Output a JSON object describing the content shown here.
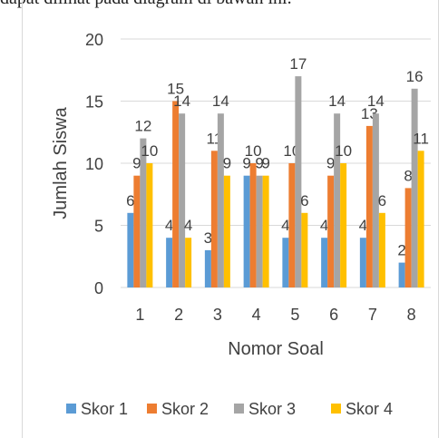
{
  "caption": "dapat dilihat pada diagram di bawah ini.",
  "chart_data": {
    "type": "bar",
    "xlabel": "Nomor Soal",
    "ylabel": "Jumlah Siswa",
    "ylim": [
      0,
      20
    ],
    "yticks": [
      0,
      5,
      10,
      15,
      20
    ],
    "grid": true,
    "legend_position": "bottom",
    "categories": [
      "1",
      "2",
      "3",
      "4",
      "5",
      "6",
      "7",
      "8"
    ],
    "series": [
      {
        "name": "Skor 1",
        "color": "#5b9bd5",
        "values": [
          6,
          4,
          3,
          9,
          4,
          4,
          4,
          2
        ]
      },
      {
        "name": "Skor 2",
        "color": "#ed7d31",
        "values": [
          9,
          15,
          11,
          10,
          10,
          9,
          13,
          8
        ]
      },
      {
        "name": "Skor 3",
        "color": "#a5a5a5",
        "values": [
          12,
          14,
          14,
          9,
          17,
          14,
          14,
          16
        ]
      },
      {
        "name": "Skor 4",
        "color": "#ffc000",
        "values": [
          10,
          4,
          9,
          9,
          6,
          10,
          6,
          11
        ]
      }
    ]
  }
}
